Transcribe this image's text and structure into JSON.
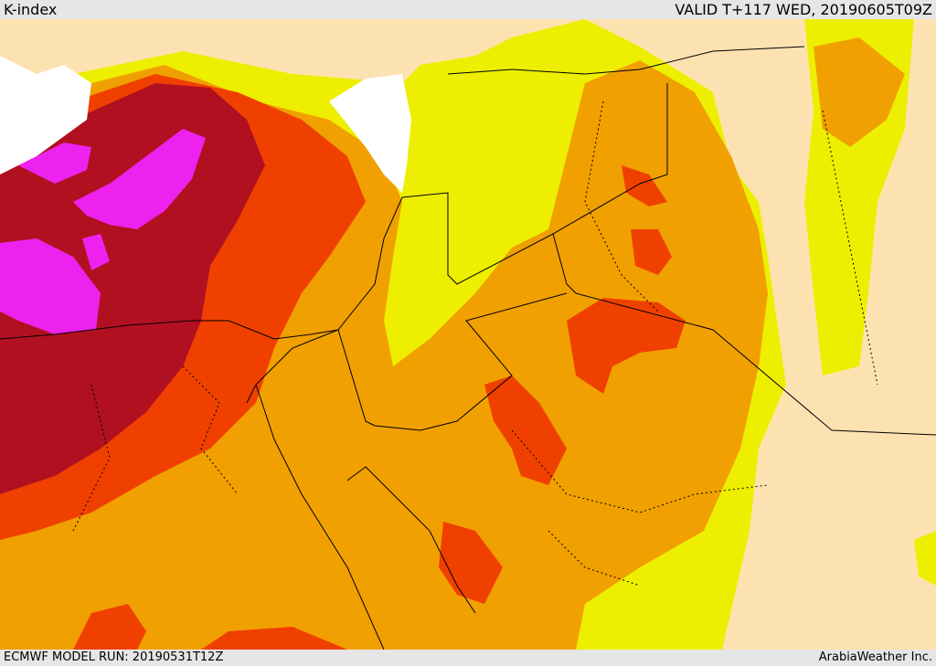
{
  "header": {
    "title": "K-index",
    "valid_text": "VALID T+117 WED, 20190605T09Z"
  },
  "footer": {
    "model_run": "ECMWF MODEL RUN: 20190531T12Z",
    "credit": "ArabiaWeather Inc."
  },
  "colors": {
    "sea": "#ffffff",
    "land_base": "#fde2b1",
    "level_1": "#eeee00",
    "level_2": "#f0a000",
    "level_3": "#f04000",
    "level_4": "#b01020",
    "level_5": "#ee22ee",
    "borders": "#000000"
  }
}
